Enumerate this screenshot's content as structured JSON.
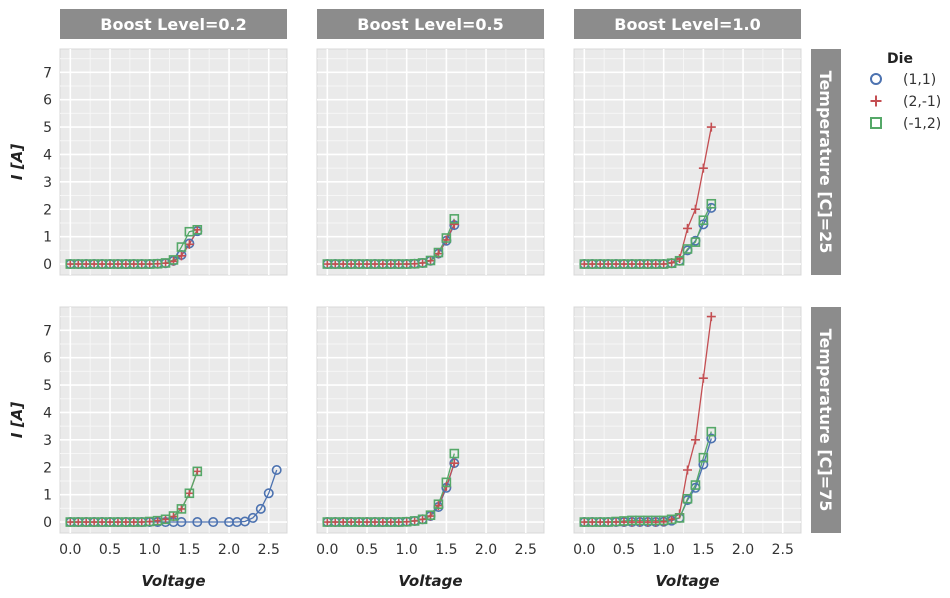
{
  "chart_data": {
    "type": "line",
    "facet_cols": {
      "labels": [
        "Boost Level=0.2",
        "Boost Level=0.5",
        "Boost Level=1.0"
      ]
    },
    "facet_rows": {
      "labels": [
        "Temperature [C]=25",
        "Temperature [C]=75"
      ]
    },
    "xlabel": "Voltage",
    "ylabel": "I [A]",
    "xlim": [
      -0.13,
      2.73
    ],
    "ylim": [
      -0.4,
      7.85
    ],
    "xticks": [
      0.0,
      0.5,
      1.0,
      1.5,
      2.0,
      2.5
    ],
    "xtick_labels": [
      "0.0",
      "0.5",
      "1.0",
      "1.5",
      "2.0",
      "2.5"
    ],
    "yticks": [
      0,
      1,
      2,
      3,
      4,
      5,
      6,
      7
    ],
    "ytick_labels": [
      "0",
      "1",
      "2",
      "3",
      "4",
      "5",
      "6",
      "7"
    ],
    "grid": true,
    "legend": {
      "title": "Die",
      "placement": "right",
      "entries": [
        "(1,1)",
        "(2,-1)",
        "(-1,2)"
      ]
    },
    "series_styles": [
      {
        "name": "(1,1)",
        "marker": "circle",
        "color": "#4c72b0"
      },
      {
        "name": "(2,-1)",
        "marker": "plus",
        "color": "#c44e52"
      },
      {
        "name": "(-1,2)",
        "marker": "square",
        "color": "#55a868"
      }
    ],
    "panels": [
      {
        "row": 0,
        "col": 0,
        "series": [
          {
            "name": "(1,1)",
            "x": [
              0.0,
              0.1,
              0.2,
              0.3,
              0.4,
              0.5,
              0.6,
              0.7,
              0.8,
              0.9,
              1.0,
              1.1,
              1.2,
              1.3,
              1.4,
              1.5,
              1.6
            ],
            "y": [
              0,
              0,
              0,
              0,
              0,
              0,
              0,
              0,
              0,
              0,
              0,
              0.01,
              0.03,
              0.12,
              0.33,
              0.75,
              1.2
            ]
          },
          {
            "name": "(2,-1)",
            "x": [
              0.0,
              0.1,
              0.2,
              0.3,
              0.4,
              0.5,
              0.6,
              0.7,
              0.8,
              0.9,
              1.0,
              1.1,
              1.2,
              1.3,
              1.4,
              1.5,
              1.6
            ],
            "y": [
              0,
              0,
              0,
              0,
              0,
              0,
              0,
              0,
              0,
              0,
              0,
              0.01,
              0.03,
              0.1,
              0.3,
              0.72,
              1.25
            ]
          },
          {
            "name": "(-1,2)",
            "x": [
              0.0,
              0.1,
              0.2,
              0.3,
              0.4,
              0.5,
              0.6,
              0.7,
              0.8,
              0.9,
              1.0,
              1.1,
              1.2,
              1.3,
              1.4,
              1.5,
              1.6
            ],
            "y": [
              0,
              0,
              0,
              0,
              0,
              0,
              0,
              0,
              0,
              0,
              0,
              0.01,
              0.04,
              0.15,
              0.62,
              1.18,
              1.25
            ]
          }
        ]
      },
      {
        "row": 0,
        "col": 1,
        "series": [
          {
            "name": "(1,1)",
            "x": [
              0.0,
              0.1,
              0.2,
              0.3,
              0.4,
              0.5,
              0.6,
              0.7,
              0.8,
              0.9,
              1.0,
              1.1,
              1.2,
              1.3,
              1.4,
              1.5,
              1.6
            ],
            "y": [
              0,
              0,
              0,
              0,
              0,
              0,
              0,
              0,
              0,
              0,
              0,
              0.01,
              0.04,
              0.12,
              0.38,
              0.85,
              1.42
            ]
          },
          {
            "name": "(2,-1)",
            "x": [
              0.0,
              0.1,
              0.2,
              0.3,
              0.4,
              0.5,
              0.6,
              0.7,
              0.8,
              0.9,
              1.0,
              1.1,
              1.2,
              1.3,
              1.4,
              1.5,
              1.6
            ],
            "y": [
              0,
              0,
              0,
              0,
              0,
              0,
              0,
              0,
              0,
              0,
              0,
              0.01,
              0.04,
              0.12,
              0.38,
              0.88,
              1.45
            ]
          },
          {
            "name": "(-1,2)",
            "x": [
              0.0,
              0.1,
              0.2,
              0.3,
              0.4,
              0.5,
              0.6,
              0.7,
              0.8,
              0.9,
              1.0,
              1.1,
              1.2,
              1.3,
              1.4,
              1.5,
              1.6
            ],
            "y": [
              0,
              0,
              0,
              0,
              0,
              0,
              0,
              0,
              0,
              0,
              0,
              0.01,
              0.04,
              0.13,
              0.42,
              0.95,
              1.65
            ]
          }
        ]
      },
      {
        "row": 0,
        "col": 2,
        "series": [
          {
            "name": "(1,1)",
            "x": [
              0.0,
              0.1,
              0.2,
              0.3,
              0.4,
              0.5,
              0.6,
              0.7,
              0.8,
              0.9,
              1.0,
              1.1,
              1.2,
              1.3,
              1.4,
              1.5,
              1.6
            ],
            "y": [
              0,
              0,
              0,
              0,
              0,
              0,
              0,
              0,
              0,
              0,
              0,
              0.03,
              0.12,
              0.5,
              0.85,
              1.45,
              2.05
            ]
          },
          {
            "name": "(2,-1)",
            "x": [
              0.0,
              0.1,
              0.2,
              0.3,
              0.4,
              0.5,
              0.6,
              0.7,
              0.8,
              0.9,
              1.0,
              1.1,
              1.2,
              1.3,
              1.4,
              1.5,
              1.6
            ],
            "y": [
              0,
              0,
              0,
              0,
              0,
              0,
              0,
              0,
              0,
              0,
              0,
              0.05,
              0.2,
              1.3,
              2.0,
              3.5,
              5.0
            ]
          },
          {
            "name": "(-1,2)",
            "x": [
              0.0,
              0.1,
              0.2,
              0.3,
              0.4,
              0.5,
              0.6,
              0.7,
              0.8,
              0.9,
              1.0,
              1.1,
              1.2,
              1.3,
              1.4,
              1.5,
              1.6
            ],
            "y": [
              0,
              0,
              0,
              0,
              0,
              0,
              0,
              0,
              0,
              0,
              0,
              0.03,
              0.12,
              0.55,
              0.8,
              1.6,
              2.2
            ]
          }
        ]
      },
      {
        "row": 1,
        "col": 0,
        "series": [
          {
            "name": "(1,1)",
            "x": [
              0.0,
              0.1,
              0.2,
              0.3,
              0.4,
              0.5,
              0.6,
              0.7,
              0.8,
              0.9,
              1.0,
              1.1,
              1.2,
              1.3,
              1.4,
              1.6,
              1.8,
              2.0,
              2.1,
              2.2,
              2.3,
              2.4,
              2.5,
              2.6
            ],
            "y": [
              0,
              0,
              0,
              0,
              0,
              0,
              0,
              0,
              0,
              0,
              0,
              0,
              0,
              0,
              0,
              0,
              0,
              0,
              0,
              0.02,
              0.15,
              0.48,
              1.05,
              1.9
            ]
          },
          {
            "name": "(2,-1)",
            "x": [
              0.0,
              0.1,
              0.2,
              0.3,
              0.4,
              0.5,
              0.6,
              0.7,
              0.8,
              0.9,
              1.0,
              1.1,
              1.2,
              1.3,
              1.4,
              1.5,
              1.6
            ],
            "y": [
              0,
              0,
              0,
              0,
              0,
              0,
              0,
              0,
              0,
              0,
              0.02,
              0.05,
              0.1,
              0.2,
              0.48,
              1.05,
              1.85
            ]
          },
          {
            "name": "(-1,2)",
            "x": [
              0.0,
              0.1,
              0.2,
              0.3,
              0.4,
              0.5,
              0.6,
              0.7,
              0.8,
              0.9,
              1.0,
              1.1,
              1.2,
              1.3,
              1.4,
              1.5,
              1.6
            ],
            "y": [
              0,
              0,
              0,
              0,
              0,
              0,
              0,
              0,
              0,
              0,
              0.02,
              0.05,
              0.1,
              0.22,
              0.48,
              1.05,
              1.85
            ]
          }
        ]
      },
      {
        "row": 1,
        "col": 1,
        "series": [
          {
            "name": "(1,1)",
            "x": [
              0.0,
              0.1,
              0.2,
              0.3,
              0.4,
              0.5,
              0.6,
              0.7,
              0.8,
              0.9,
              1.0,
              1.1,
              1.2,
              1.3,
              1.4,
              1.5,
              1.6
            ],
            "y": [
              0,
              0,
              0,
              0,
              0,
              0,
              0,
              0,
              0,
              0,
              0.01,
              0.04,
              0.1,
              0.22,
              0.55,
              1.25,
              2.15
            ]
          },
          {
            "name": "(2,-1)",
            "x": [
              0.0,
              0.1,
              0.2,
              0.3,
              0.4,
              0.5,
              0.6,
              0.7,
              0.8,
              0.9,
              1.0,
              1.1,
              1.2,
              1.3,
              1.4,
              1.5,
              1.6
            ],
            "y": [
              0,
              0,
              0,
              0,
              0,
              0,
              0,
              0,
              0,
              0,
              0.01,
              0.04,
              0.1,
              0.22,
              0.6,
              1.3,
              2.15
            ]
          },
          {
            "name": "(-1,2)",
            "x": [
              0.0,
              0.1,
              0.2,
              0.3,
              0.4,
              0.5,
              0.6,
              0.7,
              0.8,
              0.9,
              1.0,
              1.1,
              1.2,
              1.3,
              1.4,
              1.5,
              1.6
            ],
            "y": [
              0,
              0,
              0,
              0,
              0,
              0,
              0,
              0,
              0,
              0,
              0.01,
              0.04,
              0.1,
              0.25,
              0.65,
              1.45,
              2.5
            ]
          }
        ]
      },
      {
        "row": 1,
        "col": 2,
        "series": [
          {
            "name": "(1,1)",
            "x": [
              0.0,
              0.1,
              0.2,
              0.3,
              0.4,
              0.5,
              0.6,
              0.7,
              0.8,
              0.9,
              1.0,
              1.1,
              1.2,
              1.3,
              1.4,
              1.5,
              1.6
            ],
            "y": [
              0,
              0,
              0,
              0,
              0,
              0,
              0,
              0,
              0,
              0,
              0.01,
              0.05,
              0.15,
              0.8,
              1.25,
              2.1,
              3.05
            ]
          },
          {
            "name": "(2,-1)",
            "x": [
              0.0,
              0.1,
              0.2,
              0.3,
              0.4,
              0.5,
              0.6,
              0.7,
              0.8,
              0.9,
              1.0,
              1.1,
              1.2,
              1.3,
              1.4,
              1.5,
              1.6
            ],
            "y": [
              0,
              0,
              0,
              0,
              0,
              0,
              0,
              0,
              0,
              0,
              0.01,
              0.1,
              0.3,
              1.9,
              3.0,
              5.25,
              7.5
            ]
          },
          {
            "name": "(-1,2)",
            "x": [
              0.0,
              0.1,
              0.2,
              0.3,
              0.4,
              0.5,
              0.6,
              0.7,
              0.8,
              0.9,
              1.0,
              1.1,
              1.2,
              1.3,
              1.4,
              1.5,
              1.6
            ],
            "y": [
              0,
              0,
              0,
              0,
              0.02,
              0.04,
              0.06,
              0.06,
              0.06,
              0.06,
              0.06,
              0.1,
              0.15,
              0.85,
              1.35,
              2.35,
              3.3
            ]
          }
        ]
      }
    ]
  }
}
